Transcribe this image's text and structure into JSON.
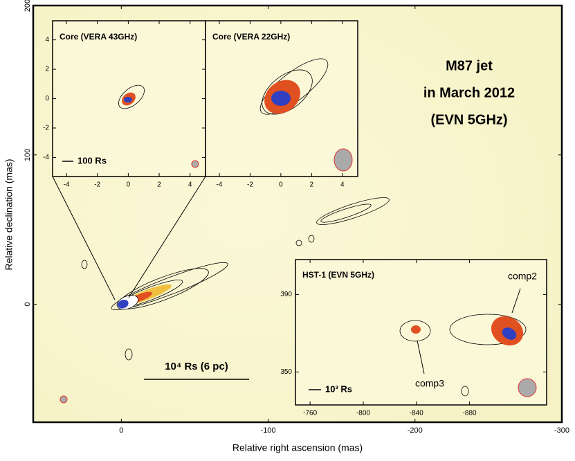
{
  "chart_data": [
    {
      "type": "image",
      "xlabel": "Relative right ascension (mas)",
      "ylabel": "Relative declination (mas)",
      "xlim": [
        60,
        -300
      ],
      "ylim": [
        -79,
        200
      ],
      "xticks": [
        0,
        -100,
        -200,
        -300
      ],
      "yticks": [
        0,
        100,
        200
      ],
      "title_lines": [
        "M87 jet",
        "in March 2012",
        "(EVN 5GHz)"
      ],
      "scale_bar": "10⁴ Rs (6 pc)"
    },
    {
      "type": "image",
      "title": "Core (VERA 43GHz)",
      "xlim": [
        -4.9,
        5
      ],
      "ylim": [
        -5.3,
        5.3
      ],
      "xticks": [
        -4,
        -2,
        0,
        2,
        4
      ],
      "yticks": [
        -4,
        -2,
        0,
        2,
        4
      ],
      "scale_bar": "100 Rs"
    },
    {
      "type": "image",
      "title": "Core (VERA 22GHz)",
      "xlim": [
        -4.9,
        5
      ],
      "xticks": [
        -4,
        -2,
        0,
        2,
        4
      ]
    },
    {
      "type": "image",
      "title": "HST-1 (EVN 5GHz)",
      "xlim": [
        -749,
        -938
      ],
      "ylim": [
        333,
        408
      ],
      "xticks": [
        -760,
        -800,
        -840,
        -880
      ],
      "yticks": [
        350,
        390
      ],
      "scale_bar": "10³ Rs",
      "labels": [
        "comp2",
        "comp3"
      ]
    }
  ]
}
